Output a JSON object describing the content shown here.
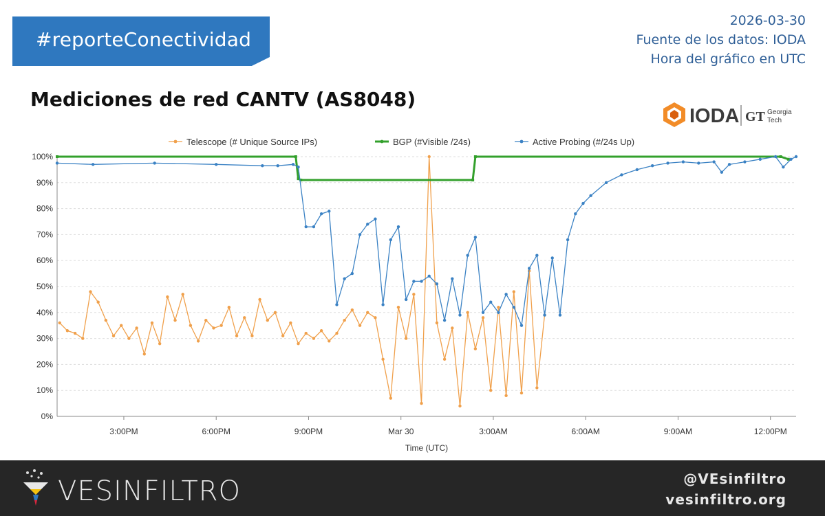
{
  "header": {
    "hashtag": "#reporteConectividad",
    "date": "2026-03-30",
    "source": "Fuente de los datos: IODA",
    "timezone": "Hora del gráfico en UTC"
  },
  "logo": {
    "name": "IODA",
    "partner_line1": "Georgia",
    "partner_line2": "Tech"
  },
  "footer": {
    "brand": "VESINFILTRO",
    "handle": "@VEsinfiltro",
    "website": "vesinfiltro.org"
  },
  "colors": {
    "banner": "#2f78bf",
    "telescope": "#f0a04b",
    "bgp": "#33a02c",
    "active_probing": "#3b82c4",
    "footer_bg": "#262626"
  },
  "chart_data": {
    "type": "line",
    "title": "Mediciones de red CANTV (AS8048)",
    "xlabel": "Time (UTC)",
    "ylabel": "",
    "ylim": [
      0,
      100
    ],
    "y_ticks": [
      "0%",
      "10%",
      "20%",
      "30%",
      "40%",
      "50%",
      "60%",
      "70%",
      "80%",
      "90%",
      "100%"
    ],
    "x_range": [
      "2026-03-29 12:50",
      "2026-03-30 12:50"
    ],
    "x_ticks": [
      {
        "t": "2026-03-29 15:00",
        "label": "3:00PM"
      },
      {
        "t": "2026-03-29 18:00",
        "label": "6:00PM"
      },
      {
        "t": "2026-03-29 21:00",
        "label": "9:00PM"
      },
      {
        "t": "2026-03-30 00:00",
        "label": "Mar 30"
      },
      {
        "t": "2026-03-30 03:00",
        "label": "3:00AM"
      },
      {
        "t": "2026-03-30 06:00",
        "label": "6:00AM"
      },
      {
        "t": "2026-03-30 09:00",
        "label": "9:00AM"
      },
      {
        "t": "2026-03-30 12:00",
        "label": "12:00PM"
      }
    ],
    "grid": true,
    "legend_position": "top",
    "series": [
      {
        "name": "Telescope (# Unique Source IPs)",
        "points": [
          [
            "2026-03-29 12:55",
            36
          ],
          [
            "2026-03-29 13:10",
            33
          ],
          [
            "2026-03-29 13:25",
            32
          ],
          [
            "2026-03-29 13:40",
            30
          ],
          [
            "2026-03-29 13:55",
            48
          ],
          [
            "2026-03-29 14:10",
            44
          ],
          [
            "2026-03-29 14:25",
            37
          ],
          [
            "2026-03-29 14:40",
            31
          ],
          [
            "2026-03-29 14:55",
            35
          ],
          [
            "2026-03-29 15:10",
            30
          ],
          [
            "2026-03-29 15:25",
            34
          ],
          [
            "2026-03-29 15:40",
            24
          ],
          [
            "2026-03-29 15:55",
            36
          ],
          [
            "2026-03-29 16:10",
            28
          ],
          [
            "2026-03-29 16:25",
            46
          ],
          [
            "2026-03-29 16:40",
            37
          ],
          [
            "2026-03-29 16:55",
            47
          ],
          [
            "2026-03-29 17:10",
            35
          ],
          [
            "2026-03-29 17:25",
            29
          ],
          [
            "2026-03-29 17:40",
            37
          ],
          [
            "2026-03-29 17:55",
            34
          ],
          [
            "2026-03-29 18:10",
            35
          ],
          [
            "2026-03-29 18:25",
            42
          ],
          [
            "2026-03-29 18:40",
            31
          ],
          [
            "2026-03-29 18:55",
            38
          ],
          [
            "2026-03-29 19:10",
            31
          ],
          [
            "2026-03-29 19:25",
            45
          ],
          [
            "2026-03-29 19:40",
            37
          ],
          [
            "2026-03-29 19:55",
            40
          ],
          [
            "2026-03-29 20:10",
            31
          ],
          [
            "2026-03-29 20:25",
            36
          ],
          [
            "2026-03-29 20:40",
            28
          ],
          [
            "2026-03-29 20:55",
            32
          ],
          [
            "2026-03-29 21:10",
            30
          ],
          [
            "2026-03-29 21:25",
            33
          ],
          [
            "2026-03-29 21:40",
            29
          ],
          [
            "2026-03-29 21:55",
            32
          ],
          [
            "2026-03-29 22:10",
            37
          ],
          [
            "2026-03-29 22:25",
            41
          ],
          [
            "2026-03-29 22:40",
            35
          ],
          [
            "2026-03-29 22:55",
            40
          ],
          [
            "2026-03-29 23:10",
            38
          ],
          [
            "2026-03-29 23:25",
            22
          ],
          [
            "2026-03-29 23:40",
            7
          ],
          [
            "2026-03-29 23:55",
            42
          ],
          [
            "2026-03-30 00:10",
            30
          ],
          [
            "2026-03-30 00:25",
            47
          ],
          [
            "2026-03-30 00:40",
            5
          ],
          [
            "2026-03-30 00:55",
            100
          ],
          [
            "2026-03-30 01:10",
            36
          ],
          [
            "2026-03-30 01:25",
            22
          ],
          [
            "2026-03-30 01:40",
            34
          ],
          [
            "2026-03-30 01:55",
            4
          ],
          [
            "2026-03-30 02:10",
            40
          ],
          [
            "2026-03-30 02:25",
            26
          ],
          [
            "2026-03-30 02:40",
            38
          ],
          [
            "2026-03-30 02:55",
            10
          ],
          [
            "2026-03-30 03:10",
            42
          ],
          [
            "2026-03-30 03:25",
            8
          ],
          [
            "2026-03-30 03:40",
            48
          ],
          [
            "2026-03-30 03:55",
            9
          ],
          [
            "2026-03-30 04:10",
            56
          ],
          [
            "2026-03-30 04:25",
            11
          ],
          [
            "2026-03-30 04:40",
            39
          ]
        ]
      },
      {
        "name": "BGP (#Visible /24s)",
        "points": [
          [
            "2026-03-29 12:50",
            100
          ],
          [
            "2026-03-29 20:35",
            100
          ],
          [
            "2026-03-29 20:40",
            91.5
          ],
          [
            "2026-03-29 20:45",
            91
          ],
          [
            "2026-03-30 02:20",
            91
          ],
          [
            "2026-03-30 02:25",
            100
          ],
          [
            "2026-03-30 12:20",
            100
          ],
          [
            "2026-03-30 12:35",
            99
          ]
        ]
      },
      {
        "name": "Active Probing (#/24s Up)",
        "points": [
          [
            "2026-03-29 12:50",
            97.5
          ],
          [
            "2026-03-29 14:00",
            97
          ],
          [
            "2026-03-29 16:00",
            97.5
          ],
          [
            "2026-03-29 18:00",
            97
          ],
          [
            "2026-03-29 19:30",
            96.5
          ],
          [
            "2026-03-29 20:00",
            96.5
          ],
          [
            "2026-03-29 20:30",
            97
          ],
          [
            "2026-03-29 20:40",
            96
          ],
          [
            "2026-03-29 20:55",
            73
          ],
          [
            "2026-03-29 21:10",
            73
          ],
          [
            "2026-03-29 21:25",
            78
          ],
          [
            "2026-03-29 21:40",
            79
          ],
          [
            "2026-03-29 21:55",
            43
          ],
          [
            "2026-03-29 22:10",
            53
          ],
          [
            "2026-03-29 22:25",
            55
          ],
          [
            "2026-03-29 22:40",
            70
          ],
          [
            "2026-03-29 22:55",
            74
          ],
          [
            "2026-03-29 23:10",
            76
          ],
          [
            "2026-03-29 23:25",
            43
          ],
          [
            "2026-03-29 23:40",
            68
          ],
          [
            "2026-03-29 23:55",
            73
          ],
          [
            "2026-03-30 00:10",
            45
          ],
          [
            "2026-03-30 00:25",
            52
          ],
          [
            "2026-03-30 00:40",
            52
          ],
          [
            "2026-03-30 00:55",
            54
          ],
          [
            "2026-03-30 01:10",
            51
          ],
          [
            "2026-03-30 01:25",
            37
          ],
          [
            "2026-03-30 01:40",
            53
          ],
          [
            "2026-03-30 01:55",
            39
          ],
          [
            "2026-03-30 02:10",
            62
          ],
          [
            "2026-03-30 02:25",
            69
          ],
          [
            "2026-03-30 02:40",
            40
          ],
          [
            "2026-03-30 02:55",
            44
          ],
          [
            "2026-03-30 03:10",
            40
          ],
          [
            "2026-03-30 03:25",
            47
          ],
          [
            "2026-03-30 03:40",
            42
          ],
          [
            "2026-03-30 03:55",
            35
          ],
          [
            "2026-03-30 04:10",
            57
          ],
          [
            "2026-03-30 04:25",
            62
          ],
          [
            "2026-03-30 04:40",
            39
          ],
          [
            "2026-03-30 04:55",
            61
          ],
          [
            "2026-03-30 05:10",
            39
          ],
          [
            "2026-03-30 05:25",
            68
          ],
          [
            "2026-03-30 05:40",
            78
          ],
          [
            "2026-03-30 05:55",
            82
          ],
          [
            "2026-03-30 06:10",
            85
          ],
          [
            "2026-03-30 06:40",
            90
          ],
          [
            "2026-03-30 07:10",
            93
          ],
          [
            "2026-03-30 07:40",
            95
          ],
          [
            "2026-03-30 08:10",
            96.5
          ],
          [
            "2026-03-30 08:40",
            97.5
          ],
          [
            "2026-03-30 09:10",
            98
          ],
          [
            "2026-03-30 09:40",
            97.5
          ],
          [
            "2026-03-30 10:10",
            98
          ],
          [
            "2026-03-30 10:25",
            94
          ],
          [
            "2026-03-30 10:40",
            97
          ],
          [
            "2026-03-30 11:10",
            98
          ],
          [
            "2026-03-30 11:40",
            99
          ],
          [
            "2026-03-30 12:10",
            100
          ],
          [
            "2026-03-30 12:25",
            96
          ],
          [
            "2026-03-30 12:40",
            99
          ],
          [
            "2026-03-30 12:50",
            100
          ]
        ]
      }
    ]
  }
}
